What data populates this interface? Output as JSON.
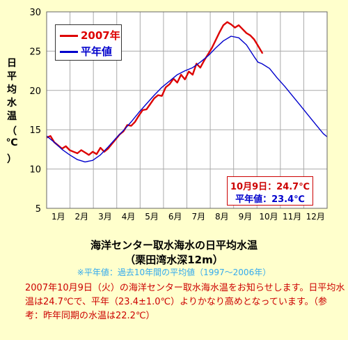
{
  "chart_data": {
    "type": "line",
    "xlim": [
      0,
      365
    ],
    "ylim": [
      5,
      30
    ],
    "yticks": [
      5,
      10,
      15,
      20,
      25,
      30
    ],
    "xtick_labels": [
      "1月",
      "2月",
      "3月",
      "4月",
      "5月",
      "6月",
      "7月",
      "8月",
      "9月",
      "10月",
      "11月",
      "12月"
    ],
    "grid": true,
    "ylabel_chars": [
      "日",
      "平",
      "均",
      "水",
      "温",
      "（",
      "℃",
      "）"
    ],
    "series": [
      {
        "name": "2007年",
        "color": "#dd0000",
        "x": [
          0,
          5,
          10,
          15,
          20,
          25,
          30,
          35,
          40,
          45,
          50,
          55,
          60,
          65,
          70,
          75,
          80,
          85,
          90,
          95,
          100,
          105,
          110,
          115,
          120,
          125,
          130,
          135,
          140,
          145,
          150,
          155,
          160,
          165,
          170,
          175,
          180,
          185,
          190,
          195,
          200,
          205,
          210,
          215,
          220,
          225,
          230,
          235,
          240,
          245,
          250,
          255,
          260,
          265,
          270,
          275,
          281
        ],
        "y": [
          14.0,
          14.2,
          13.4,
          13.0,
          12.6,
          12.9,
          12.4,
          12.2,
          12.0,
          12.4,
          12.1,
          11.8,
          12.2,
          11.9,
          12.7,
          12.2,
          12.6,
          13.2,
          13.8,
          14.4,
          14.8,
          15.6,
          15.5,
          16.0,
          16.8,
          17.5,
          17.6,
          18.3,
          19.0,
          19.4,
          19.3,
          20.4,
          20.8,
          21.5,
          21.0,
          22.0,
          21.4,
          22.4,
          22.0,
          23.4,
          22.9,
          23.8,
          24.6,
          25.4,
          26.4,
          27.4,
          28.3,
          28.7,
          28.4,
          28.0,
          28.3,
          27.8,
          27.3,
          27.0,
          26.5,
          25.7,
          24.7
        ]
      },
      {
        "name": "平年値",
        "color": "#0000cc",
        "x": [
          0,
          10,
          20,
          30,
          40,
          50,
          60,
          70,
          80,
          90,
          100,
          110,
          120,
          130,
          140,
          150,
          160,
          170,
          180,
          190,
          200,
          210,
          220,
          230,
          240,
          250,
          260,
          270,
          275,
          280,
          290,
          300,
          310,
          320,
          330,
          340,
          350,
          360,
          365
        ],
        "y": [
          14.2,
          13.4,
          12.5,
          11.8,
          11.2,
          10.9,
          11.1,
          11.8,
          12.8,
          13.9,
          14.9,
          16.0,
          17.2,
          18.3,
          19.4,
          20.4,
          21.2,
          22.0,
          22.5,
          22.9,
          23.6,
          24.4,
          25.4,
          26.3,
          26.9,
          26.7,
          25.8,
          24.3,
          23.6,
          23.4,
          22.8,
          21.6,
          20.5,
          19.3,
          18.1,
          16.9,
          15.7,
          14.5,
          14.1
        ]
      }
    ]
  },
  "legend": {
    "current_year": "2007年",
    "normal": "平年値"
  },
  "info_box": {
    "date_line": "10月9日：24.7℃",
    "normal_line": "平年値：23.4℃"
  },
  "title": "海洋センター取水海水の日平均水温",
  "subtitle": "（栗田湾水深12m）",
  "note": "※平年値：過去10年間の平均値（1997～2006年）",
  "caption": "2007年10月9日（火）の海洋センター取水海水温をお知らせします。日平均水温は24.7℃で、平年（23.4±1.0℃）よりかなり高めとなっています。（参考：昨年同期の水温は22.2℃）",
  "colors": {
    "background": "#ffffcc",
    "current_year": "#dd0000",
    "normal": "#0000cc",
    "note": "#33aaee",
    "caption": "#cc0000",
    "grid": "#aaaaaa"
  }
}
